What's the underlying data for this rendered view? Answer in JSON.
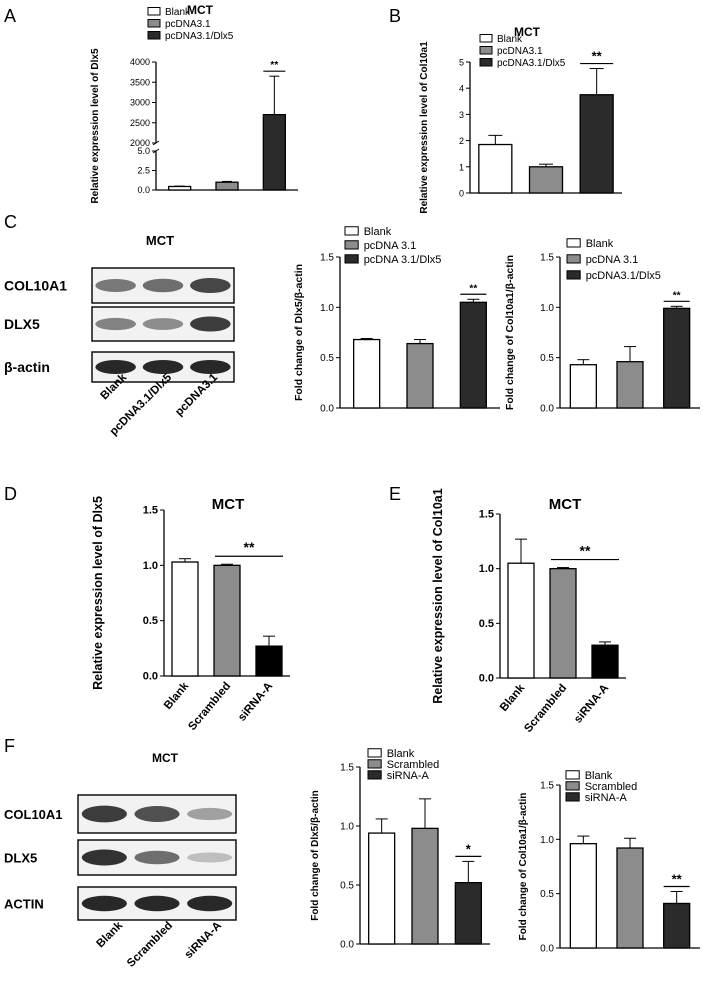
{
  "panels": [
    {
      "letter": "A"
    },
    {
      "letter": "B"
    },
    {
      "letter": "C"
    },
    {
      "letter": "D"
    },
    {
      "letter": "E"
    },
    {
      "letter": "F"
    }
  ],
  "blots": [
    {
      "title": "MCT",
      "rows": [
        "COL10A1",
        "DLX5",
        "β-actin"
      ],
      "lanes": [
        "Blank",
        "pcDNA3.1/Dlx5",
        "pcDNA3.1"
      ],
      "intensity": [
        [
          0.55,
          0.6,
          0.8
        ],
        [
          0.5,
          0.45,
          0.85
        ],
        [
          0.95,
          0.95,
          0.95
        ]
      ]
    },
    {
      "title": "MCT",
      "rows": [
        "COL10A1",
        "DLX5",
        "ACTIN"
      ],
      "lanes": [
        "Blank",
        "Scrambled",
        "siRNA-A"
      ],
      "intensity": [
        [
          0.85,
          0.75,
          0.35
        ],
        [
          0.9,
          0.6,
          0.2
        ],
        [
          0.95,
          0.95,
          0.95
        ]
      ]
    }
  ],
  "chart_data": [
    {
      "type": "bar",
      "id": "A",
      "title": "MCT",
      "ylabel": "Relative expression level of Dlx5",
      "categories": [
        "Blank",
        "pcDNA3.1",
        "pcDNA3.1/Dlx5"
      ],
      "legend": [
        "Blank",
        "pcDNA3.1",
        "pcDNA3.1/Dlx5"
      ],
      "values": [
        0.45,
        1.0,
        2700
      ],
      "errors": [
        0.05,
        0.1,
        950
      ],
      "broken_axis": true,
      "lower_range": [
        0,
        5
      ],
      "lower_ticks": [
        "0.0",
        "2.5",
        "5.0"
      ],
      "upper_range": [
        2000,
        4000
      ],
      "upper_ticks": [
        "2000",
        "2500",
        "3000",
        "3500",
        "4000"
      ],
      "significance": [
        {
          "bar": 2,
          "text": "**"
        }
      ]
    },
    {
      "type": "bar",
      "id": "B",
      "title": "MCT",
      "ylabel": "Relative expression level of Col10a1",
      "categories": [
        "Blank",
        "pcDNA3.1",
        "pcDNA3.1/Dlx5"
      ],
      "legend": [
        "Blank",
        "pcDNA3.1",
        "pcDNA3.1/Dlx5"
      ],
      "values": [
        1.85,
        1.0,
        3.75
      ],
      "errors": [
        0.35,
        0.1,
        1.0
      ],
      "ylim": [
        0,
        5
      ],
      "yticks": [
        "0",
        "1",
        "2",
        "3",
        "4",
        "5"
      ],
      "significance": [
        {
          "bar": 2,
          "text": "**"
        }
      ]
    },
    {
      "type": "bar",
      "id": "C1",
      "ylabel": "Fold change of Dlx5/β-actin",
      "categories": [
        "Blank",
        "pcDNA 3.1",
        "pcDNA 3.1/Dlx5"
      ],
      "legend": [
        "Blank",
        "pcDNA 3.1",
        "pcDNA 3.1/Dlx5"
      ],
      "values": [
        0.68,
        0.64,
        1.05
      ],
      "errors": [
        0.01,
        0.04,
        0.03
      ],
      "ylim": [
        0,
        1.5
      ],
      "yticks": [
        "0.0",
        "0.5",
        "1.0",
        "1.5"
      ],
      "significance": [
        {
          "bar": 2,
          "text": "**"
        }
      ]
    },
    {
      "type": "bar",
      "id": "C2",
      "ylabel": "Fold change of Col10a1/β-actin",
      "categories": [
        "Blank",
        "pcDNA 3.1",
        "pcDNA3.1/Dlx5"
      ],
      "legend": [
        "Blank",
        "pcDNA 3.1",
        "pcDNA3.1/Dlx5"
      ],
      "values": [
        0.43,
        0.46,
        0.99
      ],
      "errors": [
        0.05,
        0.15,
        0.02
      ],
      "ylim": [
        0,
        1.5
      ],
      "yticks": [
        "0.0",
        "0.5",
        "1.0",
        "1.5"
      ],
      "significance": [
        {
          "bar": 2,
          "text": "**"
        }
      ]
    },
    {
      "type": "bar",
      "id": "D",
      "title": "MCT",
      "ylabel": "Relative expression level of Dlx5",
      "categories": [
        "Blank",
        "Scrambled",
        "siRNA-A"
      ],
      "values": [
        1.03,
        1.0,
        0.27
      ],
      "errors": [
        0.03,
        0.01,
        0.09
      ],
      "ylim": [
        0,
        1.5
      ],
      "yticks": [
        "0.0",
        "0.5",
        "1.0",
        "1.5"
      ],
      "significance": [
        {
          "from": 1,
          "to": 2,
          "text": "**"
        }
      ]
    },
    {
      "type": "bar",
      "id": "E",
      "title": "MCT",
      "ylabel": "Relative expression level of Col10a1",
      "categories": [
        "Blank",
        "Scrambled",
        "siRNA-A"
      ],
      "values": [
        1.05,
        1.0,
        0.3
      ],
      "errors": [
        0.22,
        0.01,
        0.03
      ],
      "ylim": [
        0,
        1.5
      ],
      "yticks": [
        "0.0",
        "0.5",
        "1.0",
        "1.5"
      ],
      "significance": [
        {
          "from": 1,
          "to": 2,
          "text": "**"
        }
      ]
    },
    {
      "type": "bar",
      "id": "F1",
      "ylabel": "Fold change of Dlx5/β-actin",
      "categories": [
        "Blank",
        "Scrambled",
        "siRNA-A"
      ],
      "legend": [
        "Blank",
        "Scrambled",
        "siRNA-A"
      ],
      "values": [
        0.94,
        0.98,
        0.52
      ],
      "errors": [
        0.12,
        0.25,
        0.18
      ],
      "ylim": [
        0,
        1.5
      ],
      "yticks": [
        "0.0",
        "0.5",
        "1.0",
        "1.5"
      ],
      "significance": [
        {
          "bar": 2,
          "text": "*"
        }
      ]
    },
    {
      "type": "bar",
      "id": "F2",
      "ylabel": "Fold change of Col10a1/β-actin",
      "categories": [
        "Blank",
        "Scrambled",
        "siRNA-A"
      ],
      "legend": [
        "Blank",
        "Scrambled",
        "siRNA-A"
      ],
      "values": [
        0.96,
        0.92,
        0.41
      ],
      "errors": [
        0.07,
        0.09,
        0.11
      ],
      "ylim": [
        0,
        1.5
      ],
      "yticks": [
        "0.0",
        "0.5",
        "1.0",
        "1.5"
      ],
      "significance": [
        {
          "bar": 2,
          "text": "**"
        }
      ]
    }
  ]
}
